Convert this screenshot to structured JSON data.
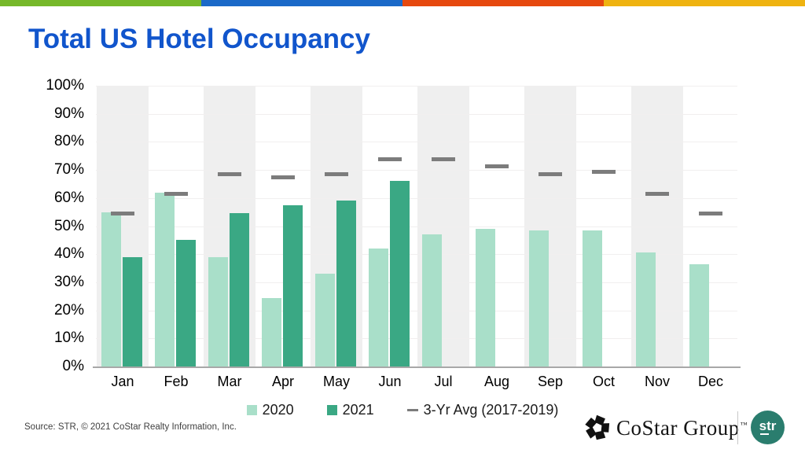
{
  "top_bar": {
    "segment_colors": [
      "#76B82A",
      "#1B69C8",
      "#E6490F",
      "#EFB310"
    ]
  },
  "header": {
    "title": "Total US Hotel Occupancy",
    "title_color": "#1155CC"
  },
  "chart_data": {
    "type": "bar",
    "title": "Total US Hotel Occupancy",
    "categories": [
      "Jan",
      "Feb",
      "Mar",
      "Apr",
      "May",
      "Jun",
      "Jul",
      "Aug",
      "Sep",
      "Oct",
      "Nov",
      "Dec"
    ],
    "series": [
      {
        "name": "2020",
        "style": "bar",
        "color": "#A9DFC9",
        "values": [
          55,
          62,
          39,
          24.5,
          33,
          42,
          47,
          49,
          48.5,
          48.5,
          40.5,
          36.5
        ]
      },
      {
        "name": "2021",
        "style": "bar",
        "color": "#3AA884",
        "values": [
          39,
          45,
          54.5,
          57.5,
          59,
          66,
          null,
          null,
          null,
          null,
          null,
          null
        ]
      },
      {
        "name": "3-Yr Avg (2017-2019)",
        "style": "dash",
        "color": "#7C7C7C",
        "values": [
          54.5,
          61.5,
          68.5,
          67.5,
          68.5,
          74,
          74,
          71.5,
          68.5,
          69.5,
          61.5,
          54.5
        ]
      }
    ],
    "xlabel": "",
    "ylabel": "",
    "ylim": [
      0,
      100
    ],
    "ytick_step": 10,
    "ytick_suffix": "%",
    "grid": true,
    "alternating_band_color": "#EFEFEF",
    "legend_position": "bottom"
  },
  "footer": {
    "source": "Source: STR, © 2021  CoStar Realty Information, Inc.",
    "costar_brand": "CoStar Group",
    "costar_tm": "™",
    "str_label": "str",
    "str_circle_color": "#2A7D6E"
  }
}
